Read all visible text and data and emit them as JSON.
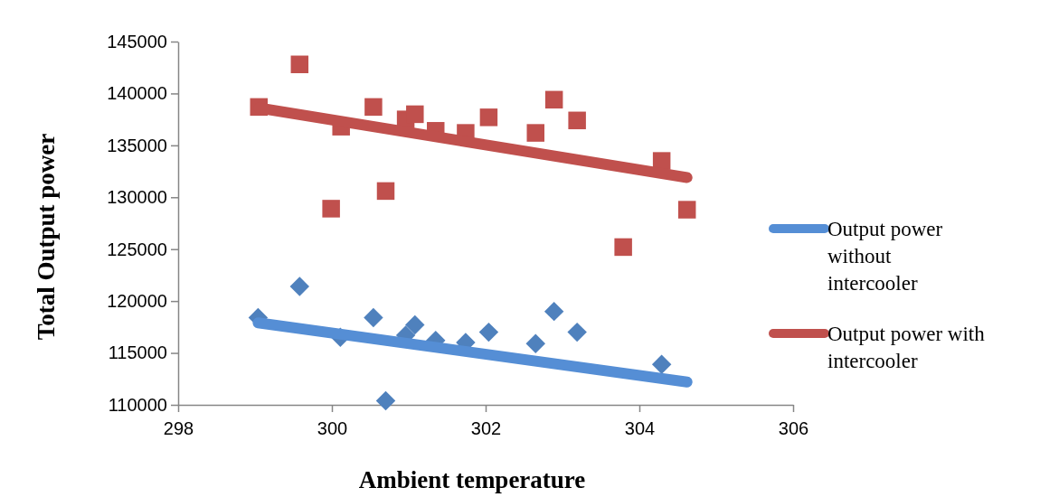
{
  "chart_data": {
    "type": "scatter",
    "xlabel": "Ambient temperature",
    "ylabel": "Total Output power",
    "xlim": [
      298,
      306
    ],
    "xticks": [
      298,
      300,
      302,
      304,
      306
    ],
    "ylim": [
      110000,
      145000
    ],
    "yticks": [
      110000,
      115000,
      120000,
      125000,
      130000,
      135000,
      140000,
      145000
    ],
    "grid": false,
    "legend": "right",
    "series": [
      {
        "marker": "diamond",
        "color": "#4f81bd",
        "x": [
          299.04,
          299.58,
          300.11,
          300.54,
          300.7,
          300.96,
          301.08,
          301.35,
          301.74,
          302.04,
          302.65,
          302.89,
          303.19,
          304.29
        ],
        "values": [
          118400,
          121400,
          116500,
          118400,
          110400,
          116700,
          117700,
          116200,
          116000,
          117000,
          115900,
          119000,
          117000,
          113900
        ]
      },
      {
        "marker": "square",
        "color": "#c0504d",
        "x": [
          299.05,
          299.58,
          299.99,
          300.12,
          300.54,
          300.7,
          300.96,
          301.08,
          301.35,
          301.74,
          302.04,
          302.65,
          302.89,
          303.19,
          303.79,
          304.29,
          304.62
        ],
        "values": [
          138700,
          142800,
          128900,
          136800,
          138700,
          130600,
          137500,
          138000,
          136400,
          136200,
          137700,
          136200,
          139400,
          137400,
          125200,
          133500,
          128800
        ]
      },
      {
        "type": "line",
        "name": "Output power without intercooler",
        "color": "#558ed5",
        "marker": "none",
        "line_style": "solid",
        "x": [
          299.04,
          304.62
        ],
        "values": [
          117900,
          112200
        ]
      },
      {
        "type": "line",
        "name": "Output power with intercooler",
        "color": "#c0504d",
        "marker": "none",
        "line_style": "solid",
        "x": [
          299.05,
          304.62
        ],
        "values": [
          138600,
          131900
        ]
      }
    ]
  }
}
